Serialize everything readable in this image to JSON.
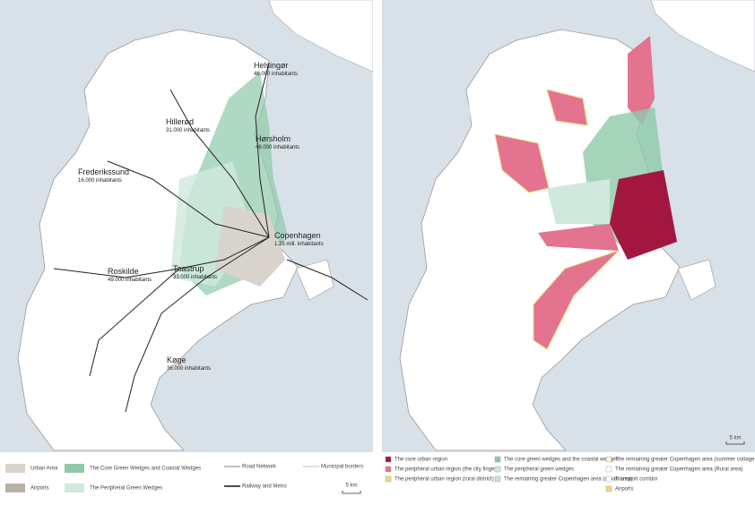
{
  "left_map": {
    "cities": [
      {
        "name": "Helsingør",
        "population": "46.000 inhabitants"
      },
      {
        "name": "Hillerød",
        "population": "31.000 inhabitants"
      },
      {
        "name": "Hørsholm",
        "population": "46.000 inhabitants"
      },
      {
        "name": "Frederikssund",
        "population": "16.000 inhabitants"
      },
      {
        "name": "Copenhagen",
        "population": "1.25 mill. inhabitants"
      },
      {
        "name": "Roskilde",
        "population": "49.000 inhabitants"
      },
      {
        "name": "Taastrup",
        "population": "33.000 inhabitants"
      },
      {
        "name": "Køge",
        "population": "36.000 inhabitants"
      }
    ],
    "legend": [
      {
        "label": "Urban Area",
        "color": "#d9d3cd"
      },
      {
        "label": "Airports",
        "color": "#b9b2a4"
      },
      {
        "label": "The Core Green Wedges and Coastal Wedges",
        "color": "#8fc9aa"
      },
      {
        "label": "The Peripheral Green Wedges",
        "color": "#cfe9dd"
      },
      {
        "label": "Road Network"
      },
      {
        "label": "Railway and Metro"
      },
      {
        "label": "Municipal borders"
      }
    ],
    "scale": "5 km"
  },
  "right_map": {
    "legend": [
      {
        "label": "The core urban region",
        "color": "#a3163f"
      },
      {
        "label": "The peripheral urban region (the city fingers)",
        "color": "#e3738f"
      },
      {
        "label": "The peripheral urban region (rural district)",
        "color": "#f1d67a"
      },
      {
        "label": "The core green wedges and the coastal wedges",
        "color": "#8fc9aa"
      },
      {
        "label": "The peripheral green wedges",
        "color": "#cfe9dd"
      },
      {
        "label": "The remaining greater Copenhagen area (urban area)",
        "color": "#d9d9d9"
      },
      {
        "label": "The remaining greater Copenhagen area (summer cottage areas)",
        "color": "#fbf3d6"
      },
      {
        "label": "The remaining greater Copenhagen area (Rural area)",
        "color": "#ffffff"
      },
      {
        "label": "Transport corridor",
        "color": "#ffffff"
      },
      {
        "label": "Airports",
        "color": "#f1d67a"
      }
    ],
    "scale": "5 km"
  }
}
